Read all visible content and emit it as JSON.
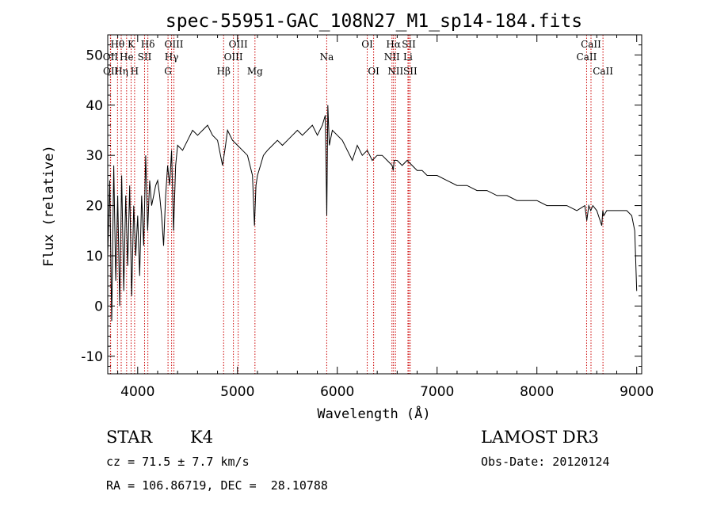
{
  "chart_data": {
    "type": "line",
    "title": "spec-55951-GAC_108N27_M1_sp14-184.fits",
    "xlabel": "Wavelength (Å)",
    "ylabel": "Flux (relative)",
    "xlim": [
      3700,
      9050
    ],
    "ylim": [
      -13.5,
      54
    ],
    "x_ticks": [
      4000,
      5000,
      6000,
      7000,
      8000,
      9000
    ],
    "y_ticks": [
      -10,
      0,
      10,
      20,
      30,
      40,
      50
    ],
    "line_color": "#000000",
    "marker_color": "#cc0000",
    "spectral_lines": [
      {
        "label": "Hθ",
        "x": 3798,
        "row": 0
      },
      {
        "label": "OII",
        "x": 3727,
        "row": 1
      },
      {
        "label": "OII",
        "x": 3729,
        "row": 2
      },
      {
        "label": "He",
        "x": 3889,
        "row": 1
      },
      {
        "label": "Hη",
        "x": 3835,
        "row": 2
      },
      {
        "label": "K",
        "x": 3934,
        "row": 0
      },
      {
        "label": "H",
        "x": 3969,
        "row": 2
      },
      {
        "label": "SII",
        "x": 4069,
        "row": 1
      },
      {
        "label": "Hδ",
        "x": 4102,
        "row": 0
      },
      {
        "label": "OIII",
        "x": 4363,
        "row": 0
      },
      {
        "label": "Hγ",
        "x": 4340,
        "row": 1
      },
      {
        "label": "G",
        "x": 4304,
        "row": 2
      },
      {
        "label": "Hβ",
        "x": 4861,
        "row": 2
      },
      {
        "label": "OIII",
        "x": 5007,
        "row": 0
      },
      {
        "label": "OIII",
        "x": 4959,
        "row": 1
      },
      {
        "label": "Mg",
        "x": 5175,
        "row": 2
      },
      {
        "label": "Na",
        "x": 5894,
        "row": 1
      },
      {
        "label": "OI",
        "x": 6300,
        "row": 0
      },
      {
        "label": "OI",
        "x": 6364,
        "row": 2
      },
      {
        "label": "Hα",
        "x": 6563,
        "row": 0
      },
      {
        "label": "NII",
        "x": 6548,
        "row": 1
      },
      {
        "label": "NII",
        "x": 6583,
        "row": 2
      },
      {
        "label": "SII",
        "x": 6717,
        "row": 0
      },
      {
        "label": "Li",
        "x": 6708,
        "row": 1
      },
      {
        "label": "SII",
        "x": 6731,
        "row": 2
      },
      {
        "label": "CaII",
        "x": 8542,
        "row": 0
      },
      {
        "label": "CaII",
        "x": 8498,
        "row": 1
      },
      {
        "label": "CaII",
        "x": 8662,
        "row": 2
      }
    ],
    "series": [
      {
        "name": "flux",
        "x": [
          3700,
          3720,
          3740,
          3760,
          3780,
          3800,
          3820,
          3840,
          3860,
          3880,
          3900,
          3920,
          3940,
          3960,
          3980,
          4000,
          4020,
          4040,
          4060,
          4080,
          4100,
          4120,
          4140,
          4160,
          4180,
          4200,
          4220,
          4240,
          4260,
          4280,
          4300,
          4320,
          4340,
          4360,
          4380,
          4400,
          4450,
          4500,
          4550,
          4600,
          4650,
          4700,
          4750,
          4800,
          4850,
          4880,
          4900,
          4950,
          5000,
          5050,
          5100,
          5150,
          5170,
          5185,
          5200,
          5230,
          5260,
          5300,
          5350,
          5400,
          5450,
          5500,
          5550,
          5600,
          5650,
          5700,
          5750,
          5800,
          5850,
          5880,
          5895,
          5905,
          5920,
          5950,
          6000,
          6050,
          6100,
          6150,
          6200,
          6250,
          6300,
          6350,
          6400,
          6450,
          6500,
          6550,
          6560,
          6570,
          6600,
          6650,
          6700,
          6750,
          6800,
          6850,
          6900,
          7000,
          7100,
          7200,
          7300,
          7400,
          7500,
          7600,
          7700,
          7800,
          7900,
          8000,
          8100,
          8200,
          8300,
          8400,
          8480,
          8500,
          8520,
          8540,
          8560,
          8600,
          8650,
          8660,
          8670,
          8700,
          8750,
          8800,
          8850,
          8900,
          8950,
          8980,
          9000
        ],
        "y": [
          10,
          25,
          -3,
          28,
          5,
          22,
          0,
          26,
          3,
          22,
          8,
          24,
          2,
          20,
          10,
          18,
          6,
          22,
          12,
          30,
          15,
          25,
          20,
          22,
          24,
          25,
          22,
          18,
          12,
          22,
          28,
          24,
          31,
          15,
          28,
          32,
          31,
          33,
          35,
          34,
          35,
          36,
          34,
          33,
          28,
          32,
          35,
          33,
          32,
          31,
          30,
          26,
          16,
          24,
          26,
          28,
          30,
          31,
          32,
          33,
          32,
          33,
          34,
          35,
          34,
          35,
          36,
          34,
          36,
          38,
          18,
          40,
          32,
          35,
          34,
          33,
          31,
          29,
          32,
          30,
          31,
          29,
          30,
          30,
          29,
          28,
          27,
          29,
          29,
          28,
          29,
          28,
          27,
          27,
          26,
          26,
          25,
          24,
          24,
          23,
          23,
          22,
          22,
          21,
          21,
          21,
          20,
          20,
          20,
          19,
          20,
          17,
          20,
          19,
          20,
          19,
          16,
          19,
          18,
          19,
          19,
          19,
          19,
          19,
          18,
          15,
          3
        ]
      }
    ]
  },
  "info": {
    "class_label": "STAR",
    "subclass": "K4",
    "cz": "cz = 71.5 ± 7.7 km/s",
    "coords": "RA = 106.86719, DEC =  28.10788",
    "survey": "LAMOST DR3",
    "obs_date": "Obs-Date: 20120124"
  }
}
